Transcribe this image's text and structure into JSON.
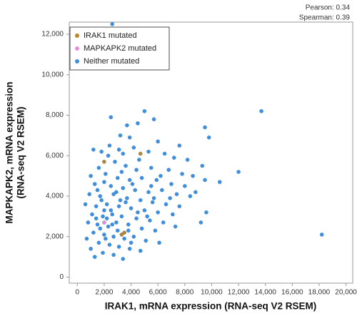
{
  "chart_data": {
    "type": "scatter",
    "xlabel": "IRAK1, mRNA expression (RNA-seq V2 RSEM)",
    "ylabel": [
      "MAPKAPK2, mRNA expression",
      "(RNA-seq V2 RSEM)"
    ],
    "annotations": [
      "Pearson: 0.34",
      "Spearman: 0.39"
    ],
    "xlim": [
      -600,
      20500
    ],
    "ylim": [
      -300,
      12600
    ],
    "xticks": [
      0,
      {
        "value": 2000,
        "label": "2,000"
      },
      {
        "value": 4000,
        "label": "4,000"
      },
      {
        "value": 6000,
        "label": "6,000"
      },
      {
        "value": 8000,
        "label": "8,000"
      },
      {
        "value": 10000,
        "label": "10,000"
      },
      {
        "value": 12000,
        "label": "12,000"
      },
      {
        "value": 14000,
        "label": "14,000"
      },
      {
        "value": 16000,
        "label": "16,000"
      },
      {
        "value": 18000,
        "label": "18,000"
      },
      {
        "value": 20000,
        "label": "20,000"
      }
    ],
    "yticks": [
      0,
      {
        "value": 2000,
        "label": "2,000"
      },
      {
        "value": 4000,
        "label": "4,000"
      },
      {
        "value": 6000,
        "label": "6,000"
      },
      {
        "value": 8000,
        "label": "8,000"
      },
      {
        "value": 10000,
        "label": "10,000"
      },
      {
        "value": 12000,
        "label": "12,000"
      }
    ],
    "grid": false,
    "legend": "top-left",
    "series": [
      {
        "name": "IRAK1 mutated",
        "color": "#b8862b",
        "x": [
          2000,
          4700,
          3500,
          3300
        ],
        "values": [
          5700,
          6100,
          2200,
          2100
        ]
      },
      {
        "name": "MAPKAPK2 mutated",
        "color": "#e38fd6",
        "x": [
          2000
        ],
        "values": [
          2700
        ]
      },
      {
        "name": "Neither mutated",
        "color": "#3d8fe0",
        "x": [
          2600,
          13700,
          18200,
          12000,
          10600,
          9500,
          9800,
          9300,
          9500,
          9600,
          9200,
          5000,
          2500,
          3700,
          5700,
          4500,
          3200,
          3900,
          6000,
          7600,
          1200,
          1800,
          2300,
          3100,
          4200,
          5300,
          6500,
          7200,
          8200,
          2800,
          1600,
          3600,
          4400,
          5500,
          6800,
          7800,
          8600,
          1000,
          2100,
          3000,
          3900,
          4800,
          5900,
          7000,
          8000,
          1300,
          2500,
          3400,
          4300,
          5300,
          6300,
          7400,
          8400,
          900,
          1700,
          2700,
          3700,
          4700,
          5600,
          6600,
          7600,
          600,
          1400,
          2200,
          3100,
          4000,
          5000,
          6000,
          7100,
          1100,
          1900,
          2600,
          3300,
          4400,
          5400,
          6400,
          800,
          1500,
          2300,
          2900,
          3800,
          4800,
          5800,
          1200,
          2000,
          2700,
          3500,
          4200,
          5100,
          6100,
          700,
          1600,
          2400,
          3100,
          3900,
          4700,
          1000,
          1900,
          2700,
          3400,
          1300,
          2200,
          2500,
          1800,
          2900,
          3600,
          4100,
          1500,
          2000,
          3300,
          4600,
          5200,
          3000,
          2100,
          1700,
          4500,
          5700,
          6200,
          2400,
          3400,
          3800,
          2600,
          2000,
          1400,
          3200,
          4000,
          6900,
          5500,
          8800,
          7300
        ],
        "values": [
          12500,
          8200,
          2100,
          5200,
          4700,
          7400,
          6900,
          5500,
          4800,
          3200,
          2700,
          8200,
          7900,
          7500,
          7800,
          7600,
          7000,
          6900,
          6700,
          6500,
          6300,
          6200,
          6000,
          6300,
          6400,
          6200,
          6100,
          5900,
          5800,
          5700,
          5400,
          5500,
          5300,
          5400,
          5300,
          5100,
          5000,
          5000,
          5100,
          4900,
          4800,
          4900,
          4800,
          4600,
          4500,
          4600,
          4500,
          4400,
          4300,
          4200,
          4300,
          4100,
          4000,
          4100,
          4000,
          4100,
          3900,
          3800,
          3700,
          3600,
          3500,
          3600,
          3500,
          3600,
          3500,
          3400,
          3300,
          3200,
          3100,
          3100,
          3000,
          3100,
          3000,
          2900,
          2800,
          2700,
          2700,
          2600,
          2500,
          2700,
          2600,
          2400,
          2300,
          2200,
          2100,
          2000,
          1900,
          2000,
          1800,
          1700,
          1900,
          1700,
          1600,
          1500,
          1400,
          1300,
          1400,
          1200,
          1100,
          900,
          1000,
          2900,
          3300,
          3800,
          4200,
          3700,
          4600,
          4300,
          4700,
          5200,
          5800,
          3000,
          2300,
          1900,
          2400,
          3200,
          3900,
          5000,
          6500,
          6100,
          2300,
          2600,
          3300,
          2900,
          3800,
          1700,
          3900,
          4500,
          4200,
          2500
        ]
      }
    ]
  }
}
